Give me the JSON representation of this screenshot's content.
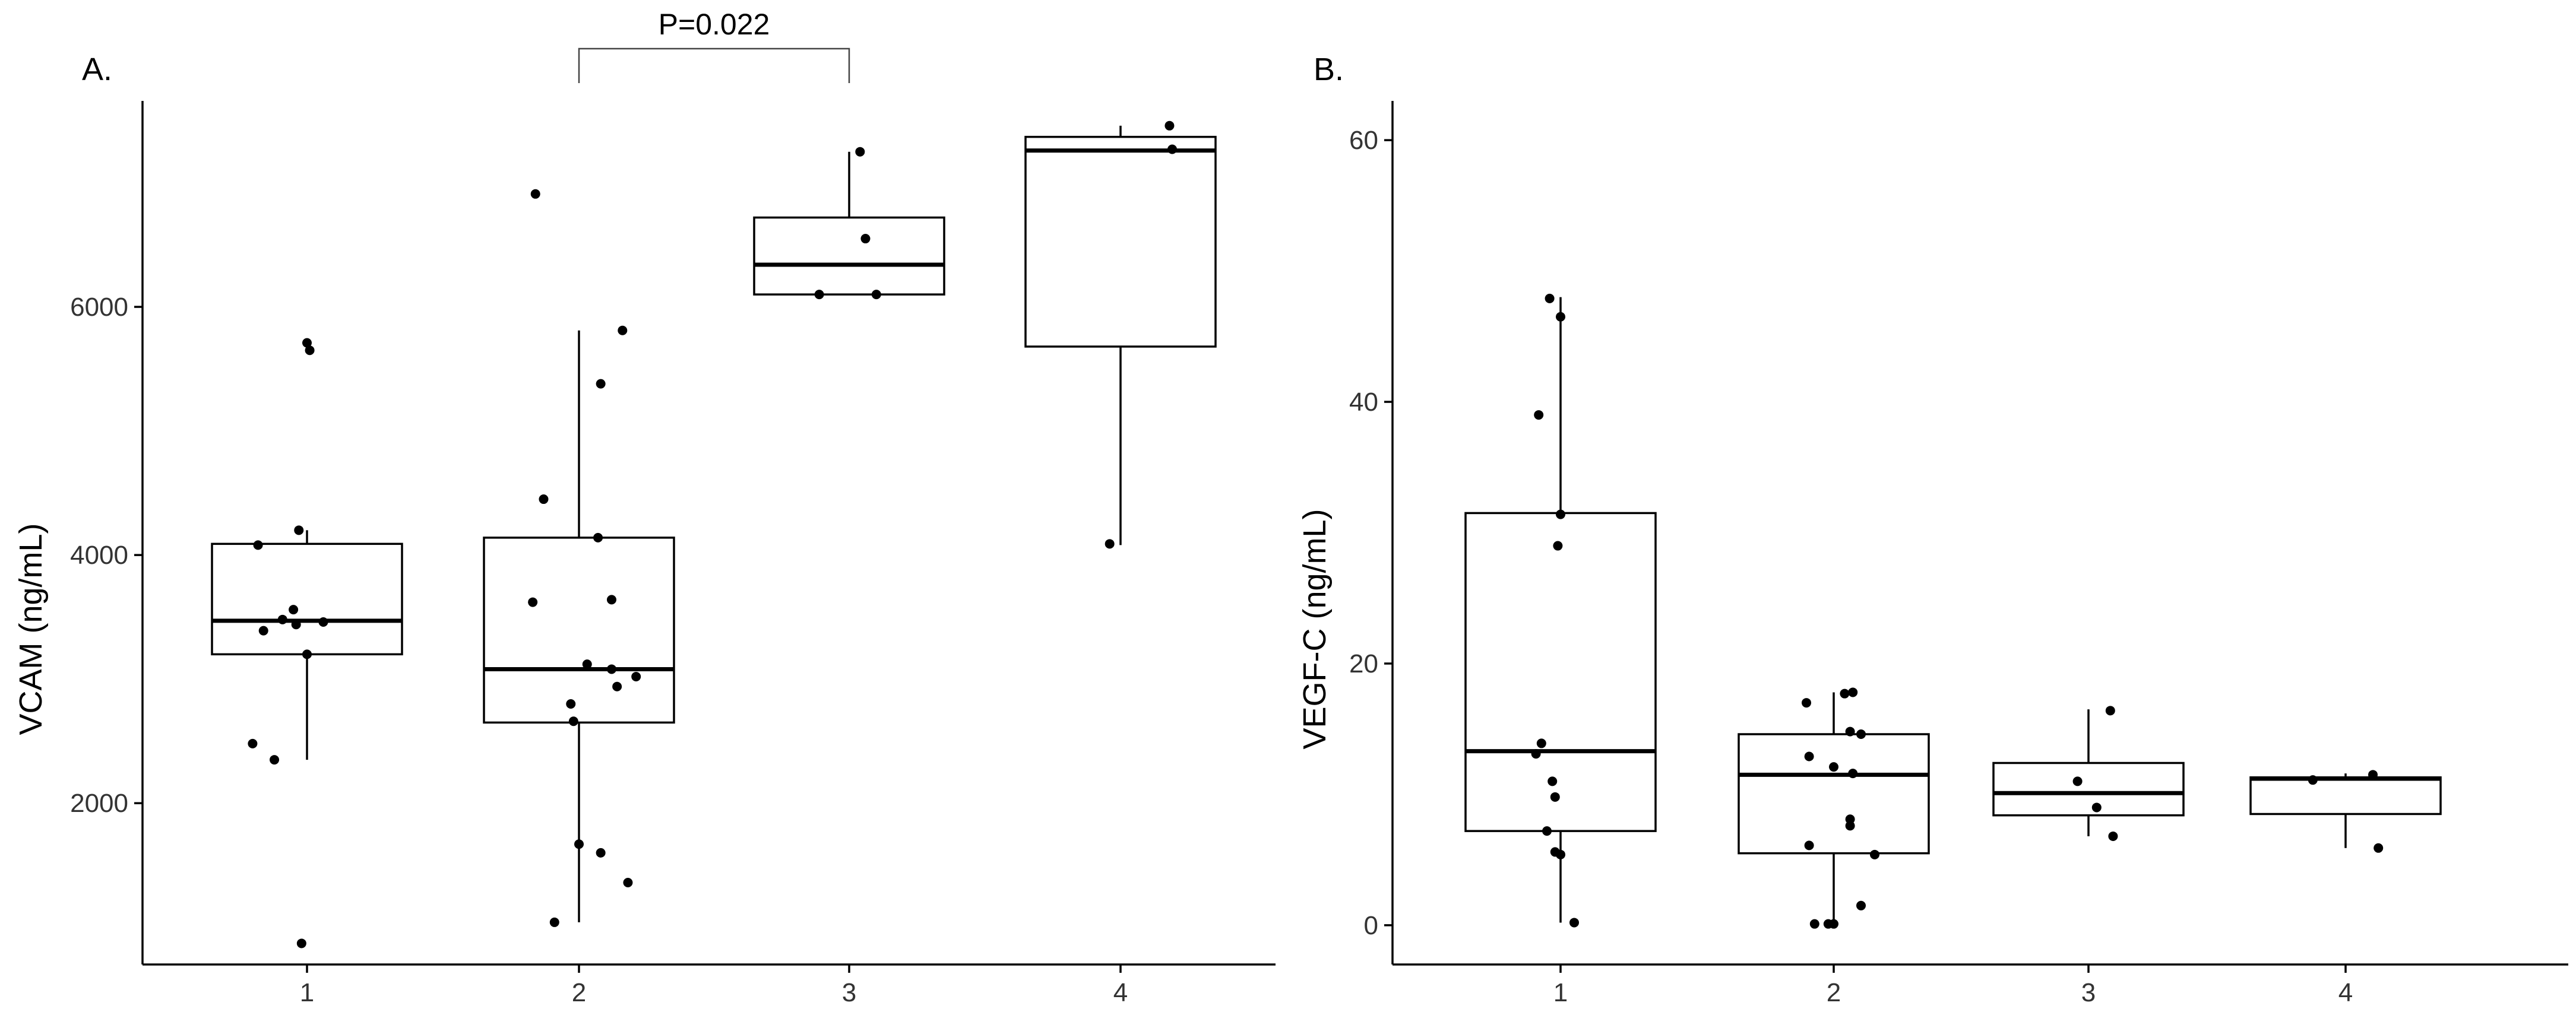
{
  "chart_data": [
    {
      "type": "box",
      "panel_label": "A.",
      "ylabel": "VCAM  (ng/mL)",
      "xlabel": "",
      "categories": [
        "1",
        "2",
        "3",
        "4"
      ],
      "y_ticks": [
        2000,
        4000,
        6000
      ],
      "y_tick_labels": [
        "2000",
        "4000",
        "6000"
      ],
      "ylim": [
        700,
        7660
      ],
      "boxes": [
        {
          "category": "1",
          "q1": 3200,
          "median": 3470,
          "q3": 4090,
          "whisker_low": 2350,
          "whisker_high": 4200
        },
        {
          "category": "2",
          "q1": 2650,
          "median": 3080,
          "q3": 4140,
          "whisker_low": 1040,
          "whisker_high": 5810
        },
        {
          "category": "3",
          "q1": 6100,
          "median": 6340,
          "q3": 6720,
          "whisker_low": 6100,
          "whisker_high": 7250
        },
        {
          "category": "4",
          "q1": 5680,
          "median": 7260,
          "q3": 7370,
          "whisker_low": 4080,
          "whisker_high": 7460
        }
      ],
      "points": [
        {
          "category": "1",
          "jitter": -0.2,
          "y": 2480
        },
        {
          "category": "1",
          "jitter": -0.12,
          "y": 2350
        },
        {
          "category": "1",
          "jitter": -0.02,
          "y": 870
        },
        {
          "category": "1",
          "jitter": -0.18,
          "y": 4080
        },
        {
          "category": "1",
          "jitter": -0.03,
          "y": 4200
        },
        {
          "category": "1",
          "jitter": 0.0,
          "y": 5710
        },
        {
          "category": "1",
          "jitter": 0.01,
          "y": 5650
        },
        {
          "category": "1",
          "jitter": -0.09,
          "y": 3480
        },
        {
          "category": "1",
          "jitter": -0.05,
          "y": 3560
        },
        {
          "category": "1",
          "jitter": -0.16,
          "y": 3390
        },
        {
          "category": "1",
          "jitter": -0.04,
          "y": 3440
        },
        {
          "category": "1",
          "jitter": 0.06,
          "y": 3460
        },
        {
          "category": "1",
          "jitter": 0.0,
          "y": 3200
        },
        {
          "category": "2",
          "jitter": -0.16,
          "y": 6910
        },
        {
          "category": "2",
          "jitter": 0.16,
          "y": 5810
        },
        {
          "category": "2",
          "jitter": 0.08,
          "y": 5380
        },
        {
          "category": "2",
          "jitter": -0.13,
          "y": 4450
        },
        {
          "category": "2",
          "jitter": 0.07,
          "y": 4140
        },
        {
          "category": "2",
          "jitter": 0.12,
          "y": 3640
        },
        {
          "category": "2",
          "jitter": -0.17,
          "y": 3620
        },
        {
          "category": "2",
          "jitter": 0.03,
          "y": 3120
        },
        {
          "category": "2",
          "jitter": 0.12,
          "y": 3080
        },
        {
          "category": "2",
          "jitter": 0.21,
          "y": 3020
        },
        {
          "category": "2",
          "jitter": 0.14,
          "y": 2940
        },
        {
          "category": "2",
          "jitter": -0.03,
          "y": 2800
        },
        {
          "category": "2",
          "jitter": -0.02,
          "y": 2660
        },
        {
          "category": "2",
          "jitter": 0.0,
          "y": 1670
        },
        {
          "category": "2",
          "jitter": 0.08,
          "y": 1600
        },
        {
          "category": "2",
          "jitter": 0.18,
          "y": 1360
        },
        {
          "category": "2",
          "jitter": -0.09,
          "y": 1040
        },
        {
          "category": "3",
          "jitter": 0.04,
          "y": 7250
        },
        {
          "category": "3",
          "jitter": 0.06,
          "y": 6550
        },
        {
          "category": "3",
          "jitter": -0.11,
          "y": 6100
        },
        {
          "category": "3",
          "jitter": 0.1,
          "y": 6100
        },
        {
          "category": "4",
          "jitter": 0.18,
          "y": 7460
        },
        {
          "category": "4",
          "jitter": 0.19,
          "y": 7270
        },
        {
          "category": "4",
          "jitter": -0.04,
          "y": 4090
        }
      ],
      "annotation": {
        "text": "P=0.022",
        "from": "2",
        "to": "3"
      }
    },
    {
      "type": "box",
      "panel_label": "B.",
      "ylabel": "VEGF-C  (ng/mL)",
      "xlabel": "",
      "categories": [
        "1",
        "2",
        "3",
        "4"
      ],
      "y_ticks": [
        0,
        20,
        40,
        60
      ],
      "y_tick_labels": [
        "0",
        "20",
        "40",
        "60"
      ],
      "ylim": [
        -3,
        63
      ],
      "boxes": [
        {
          "category": "1",
          "q1": 7.2,
          "median": 13.3,
          "q3": 31.5,
          "whisker_low": 0.2,
          "whisker_high": 48.0
        },
        {
          "category": "2",
          "q1": 5.5,
          "median": 11.5,
          "q3": 14.6,
          "whisker_low": 0.1,
          "whisker_high": 17.8
        },
        {
          "category": "3",
          "q1": 8.4,
          "median": 10.1,
          "q3": 12.4,
          "whisker_low": 6.8,
          "whisker_high": 16.5
        },
        {
          "category": "4",
          "q1": 8.5,
          "median": 11.2,
          "q3": 11.3,
          "whisker_low": 5.9,
          "whisker_high": 11.6
        }
      ],
      "points": [
        {
          "category": "1",
          "jitter": -0.04,
          "y": 47.9
        },
        {
          "category": "1",
          "jitter": 0.0,
          "y": 46.5
        },
        {
          "category": "1",
          "jitter": -0.08,
          "y": 39.0
        },
        {
          "category": "1",
          "jitter": 0.0,
          "y": 31.4
        },
        {
          "category": "1",
          "jitter": -0.01,
          "y": 29.0
        },
        {
          "category": "1",
          "jitter": -0.07,
          "y": 13.9
        },
        {
          "category": "1",
          "jitter": -0.09,
          "y": 13.1
        },
        {
          "category": "1",
          "jitter": -0.03,
          "y": 11.0
        },
        {
          "category": "1",
          "jitter": -0.02,
          "y": 9.8
        },
        {
          "category": "1",
          "jitter": -0.05,
          "y": 7.2
        },
        {
          "category": "1",
          "jitter": -0.02,
          "y": 5.6
        },
        {
          "category": "1",
          "jitter": 0.0,
          "y": 5.4
        },
        {
          "category": "1",
          "jitter": 0.05,
          "y": 0.2
        },
        {
          "category": "2",
          "jitter": -0.1,
          "y": 17.0
        },
        {
          "category": "2",
          "jitter": 0.04,
          "y": 17.7
        },
        {
          "category": "2",
          "jitter": 0.07,
          "y": 17.8
        },
        {
          "category": "2",
          "jitter": 0.06,
          "y": 14.8
        },
        {
          "category": "2",
          "jitter": 0.1,
          "y": 14.6
        },
        {
          "category": "2",
          "jitter": -0.09,
          "y": 12.9
        },
        {
          "category": "2",
          "jitter": 0.0,
          "y": 12.1
        },
        {
          "category": "2",
          "jitter": 0.07,
          "y": 11.6
        },
        {
          "category": "2",
          "jitter": 0.06,
          "y": 8.1
        },
        {
          "category": "2",
          "jitter": 0.06,
          "y": 7.6
        },
        {
          "category": "2",
          "jitter": -0.09,
          "y": 6.1
        },
        {
          "category": "2",
          "jitter": 0.15,
          "y": 5.4
        },
        {
          "category": "2",
          "jitter": 0.1,
          "y": 1.5
        },
        {
          "category": "2",
          "jitter": -0.07,
          "y": 0.1
        },
        {
          "category": "2",
          "jitter": -0.02,
          "y": 0.1
        },
        {
          "category": "2",
          "jitter": 0.0,
          "y": 0.1
        },
        {
          "category": "3",
          "jitter": 0.08,
          "y": 16.4
        },
        {
          "category": "3",
          "jitter": -0.04,
          "y": 11.0
        },
        {
          "category": "3",
          "jitter": 0.03,
          "y": 9.0
        },
        {
          "category": "3",
          "jitter": 0.09,
          "y": 6.8
        },
        {
          "category": "4",
          "jitter": -0.12,
          "y": 11.1
        },
        {
          "category": "4",
          "jitter": 0.1,
          "y": 11.5
        },
        {
          "category": "4",
          "jitter": 0.12,
          "y": 5.9
        }
      ]
    }
  ]
}
